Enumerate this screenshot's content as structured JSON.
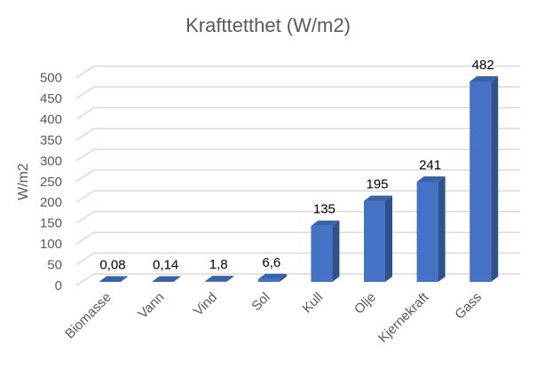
{
  "chart_data": {
    "type": "bar",
    "style": "3d-column",
    "title": "Krafttetthet (W/m2)",
    "xlabel": "",
    "ylabel": "W/m2",
    "ylim": [
      0,
      500
    ],
    "yticks": [
      0,
      50,
      100,
      150,
      200,
      250,
      300,
      350,
      400,
      450,
      500
    ],
    "grid": true,
    "categories": [
      "Biomasse",
      "Vann",
      "Vind",
      "Sol",
      "Kull",
      "Olje",
      "Kjernekraft",
      "Gass"
    ],
    "values": [
      0.08,
      0.14,
      1.8,
      6.6,
      135,
      195,
      241,
      482
    ],
    "data_labels": [
      "0,08",
      "0,14",
      "1,8",
      "6,6",
      "135",
      "195",
      "241",
      "482"
    ],
    "colors": {
      "front": "#4472C4",
      "side": "#2F528F",
      "top": "#3A62A8",
      "grid": "#D9D9D9",
      "tick": "#595959"
    }
  }
}
